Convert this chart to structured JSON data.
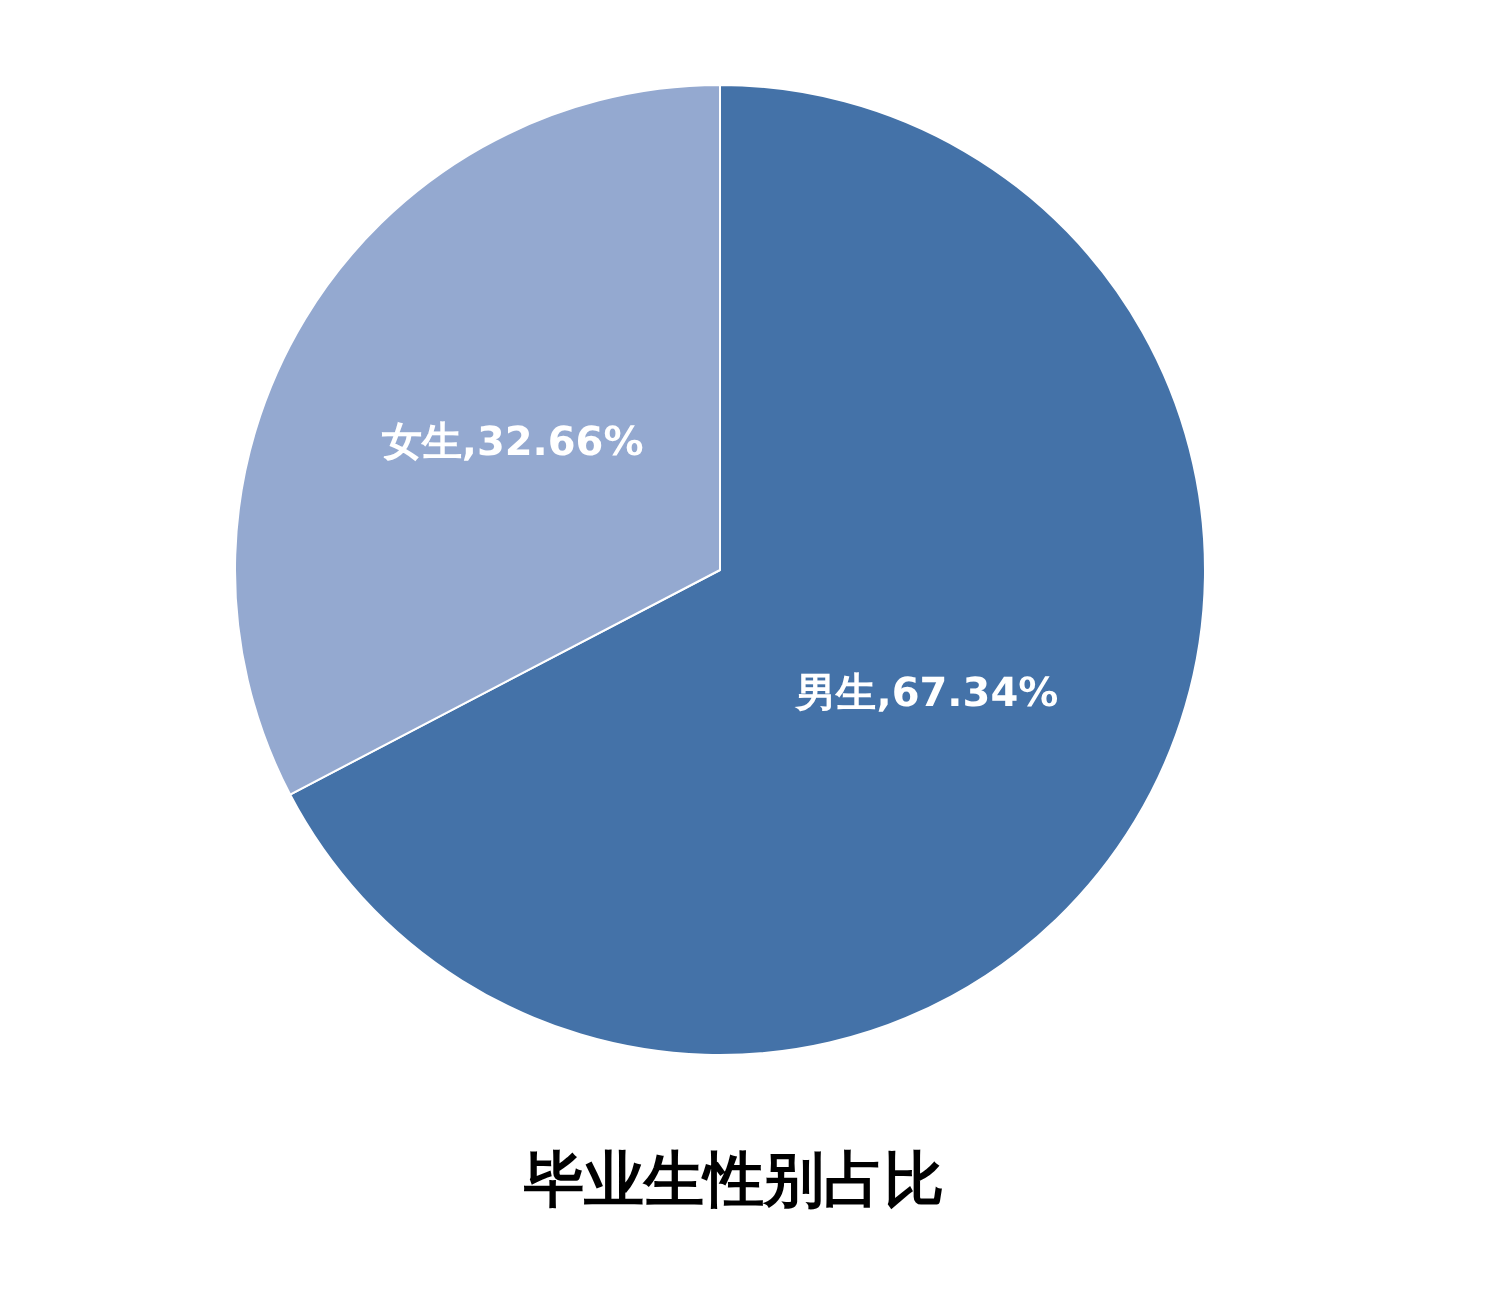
{
  "chart_data": {
    "type": "pie",
    "title": "毕业生性别占比",
    "categories": [
      "男生",
      "女生"
    ],
    "values": [
      67.34,
      32.66
    ],
    "colors": [
      "#4472a8",
      "#94a9d0"
    ],
    "value_labels": [
      "67.34%",
      "32.66%"
    ],
    "legend": false
  }
}
